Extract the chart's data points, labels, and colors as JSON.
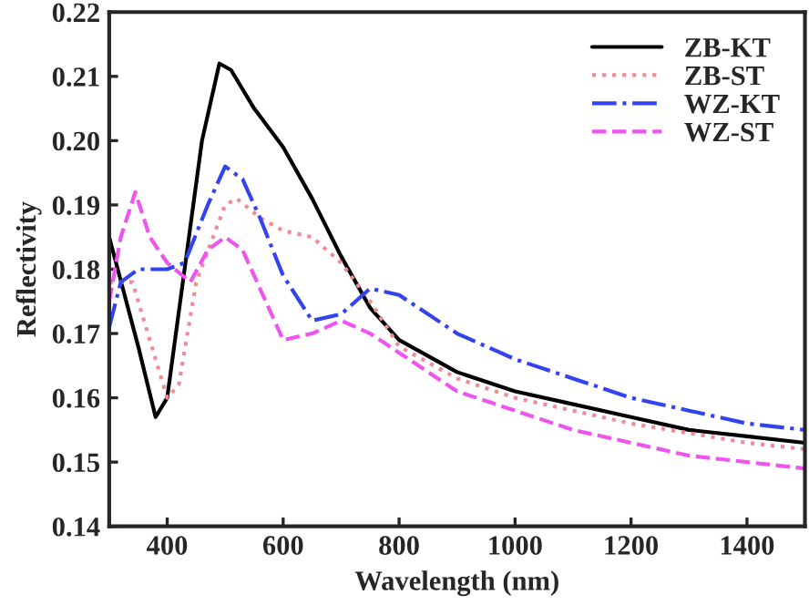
{
  "chart_data": {
    "type": "line",
    "xlabel": "Wavelength (nm)",
    "ylabel": "Reflectivity",
    "xlim": [
      300,
      1500
    ],
    "ylim": [
      0.14,
      0.22
    ],
    "xticks": [
      400,
      600,
      800,
      1000,
      1200,
      1400
    ],
    "yticks": [
      {
        "value": 0.14,
        "label": "0.14"
      },
      {
        "value": 0.15,
        "label": "0.15"
      },
      {
        "value": 0.16,
        "label": "0.16"
      },
      {
        "value": 0.17,
        "label": "0.17"
      },
      {
        "value": 0.18,
        "label": "0.18"
      },
      {
        "value": 0.19,
        "label": "0.19"
      },
      {
        "value": 0.2,
        "label": "0.20"
      },
      {
        "value": 0.21,
        "label": "0.21"
      },
      {
        "value": 0.22,
        "label": "0.22"
      }
    ],
    "legend": "top right",
    "grid": false,
    "series": [
      {
        "name": "ZB-KT",
        "color": "#000000",
        "line_style": "solid",
        "x": [
          300,
          350,
          380,
          400,
          430,
          460,
          490,
          510,
          550,
          600,
          650,
          700,
          750,
          800,
          900,
          1000,
          1100,
          1200,
          1300,
          1400,
          1500
        ],
        "values": [
          0.185,
          0.168,
          0.157,
          0.16,
          0.18,
          0.2,
          0.212,
          0.211,
          0.205,
          0.199,
          0.191,
          0.182,
          0.174,
          0.169,
          0.164,
          0.161,
          0.159,
          0.157,
          0.155,
          0.154,
          0.153
        ]
      },
      {
        "name": "ZB-ST",
        "color": "#f08c96",
        "line_style": "dotted",
        "x": [
          300,
          340,
          360,
          400,
          420,
          450,
          500,
          520,
          560,
          600,
          650,
          700,
          750,
          800,
          900,
          1000,
          1200,
          1400,
          1500
        ],
        "values": [
          0.178,
          0.178,
          0.172,
          0.16,
          0.162,
          0.178,
          0.19,
          0.191,
          0.188,
          0.186,
          0.185,
          0.181,
          0.175,
          0.168,
          0.163,
          0.16,
          0.156,
          0.153,
          0.152
        ]
      },
      {
        "name": "WZ-KT",
        "color": "#3344ee",
        "line_style": "dashdot",
        "x": [
          300,
          320,
          350,
          400,
          430,
          470,
          500,
          530,
          560,
          600,
          650,
          700,
          750,
          800,
          900,
          1000,
          1100,
          1200,
          1300,
          1400,
          1500
        ],
        "values": [
          0.171,
          0.178,
          0.18,
          0.18,
          0.181,
          0.19,
          0.196,
          0.194,
          0.188,
          0.179,
          0.172,
          0.173,
          0.177,
          0.176,
          0.17,
          0.166,
          0.163,
          0.16,
          0.158,
          0.156,
          0.155
        ]
      },
      {
        "name": "WZ-ST",
        "color": "#ee55ee",
        "line_style": "dashed",
        "x": [
          300,
          320,
          345,
          370,
          400,
          440,
          470,
          500,
          530,
          570,
          600,
          650,
          700,
          750,
          800,
          900,
          1000,
          1100,
          1200,
          1300,
          1400,
          1500
        ],
        "values": [
          0.175,
          0.185,
          0.192,
          0.185,
          0.181,
          0.178,
          0.183,
          0.185,
          0.183,
          0.175,
          0.169,
          0.17,
          0.172,
          0.17,
          0.167,
          0.161,
          0.158,
          0.155,
          0.153,
          0.151,
          0.15,
          0.149
        ]
      }
    ]
  }
}
